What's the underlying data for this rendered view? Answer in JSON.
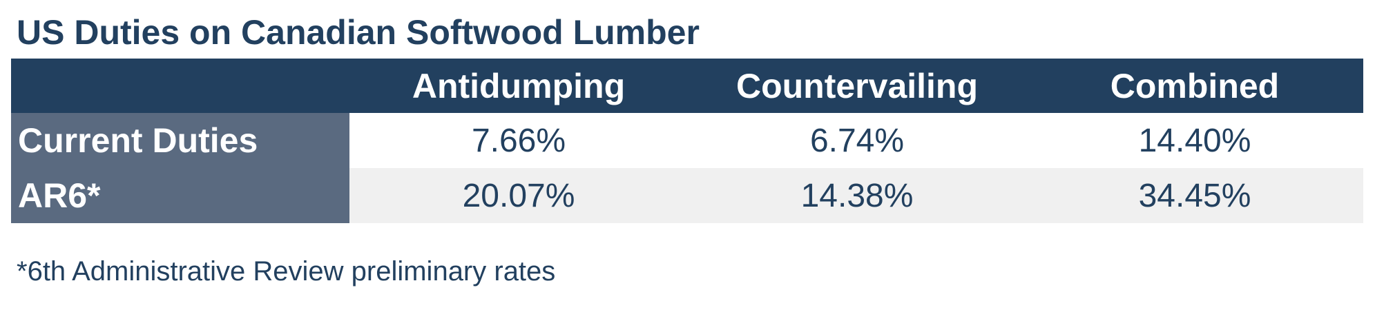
{
  "chart_data": {
    "type": "table",
    "title": "US Duties on Canadian Softwood Lumber",
    "columns": [
      "",
      "Antidumping",
      "Countervailing",
      "Combined"
    ],
    "rows": [
      {
        "label": "Current Duties",
        "values": [
          "7.66%",
          "6.74%",
          "14.40%"
        ]
      },
      {
        "label": "AR6*",
        "values": [
          "20.07%",
          "14.38%",
          "34.45%"
        ]
      }
    ],
    "footnote": "*6th Administrative Review preliminary rates"
  },
  "colors": {
    "header_bg": "#22405f",
    "rowhead_bg": "#5a6a80",
    "text": "#22405f",
    "alt_row_bg": "#f0f0f0"
  }
}
